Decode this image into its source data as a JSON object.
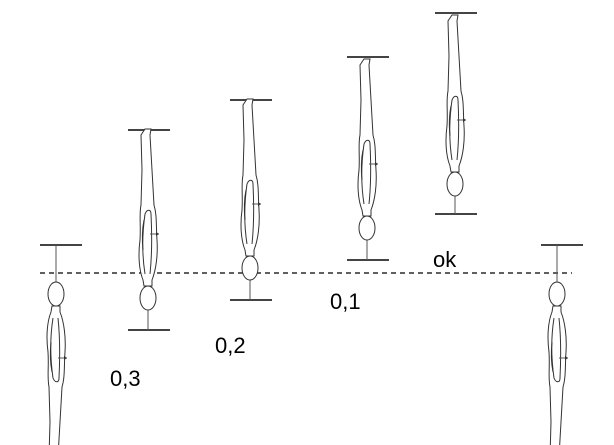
{
  "labels": [
    "0,3",
    "0,2",
    "0,1",
    "ok"
  ]
}
